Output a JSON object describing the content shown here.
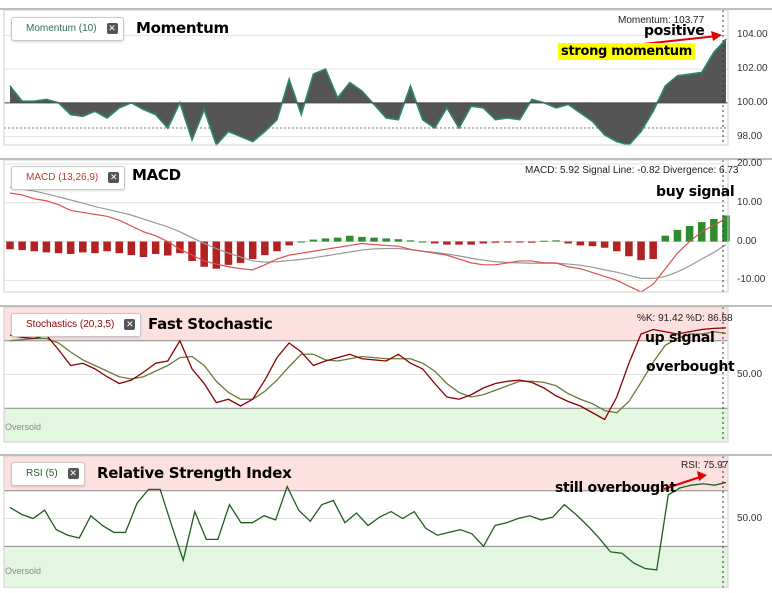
{
  "chart_data": [
    {
      "type": "area",
      "panel": "momentum",
      "indicator_label": "Momentum (10)",
      "title": "Momentum",
      "readout": "Momentum: 103.77",
      "annotations": [
        "positive",
        "strong momentum"
      ],
      "ylim": [
        97.5,
        105.5
      ],
      "yticks": [
        98,
        100,
        102,
        104
      ],
      "ytick_labels": [
        "98.00",
        "100.00",
        "102.00",
        "104.00"
      ],
      "baseline": 100,
      "values": [
        101.0,
        100.1,
        100.1,
        100.2,
        100.0,
        99.3,
        99.2,
        99.5,
        99.1,
        99.7,
        100.0,
        99.6,
        99.3,
        98.5,
        100.0,
        97.8,
        99.6,
        97.5,
        98.3,
        98.0,
        97.7,
        98.3,
        99.0,
        101.4,
        99.3,
        101.7,
        102.0,
        100.3,
        101.2,
        100.7,
        99.9,
        99.1,
        99.0,
        101.0,
        99.0,
        98.5,
        99.7,
        98.5,
        99.8,
        99.7,
        99.0,
        99.1,
        99.0,
        100.2,
        100.0,
        99.7,
        99.9,
        99.4,
        98.9,
        98.1,
        97.7,
        97.5,
        98.3,
        99.5,
        101.0,
        101.6,
        101.7,
        101.8,
        103.0,
        103.77
      ],
      "colors": {
        "area": "#555555",
        "line": "#2b8a6e"
      }
    },
    {
      "type": "bar",
      "panel": "macd",
      "indicator_label": "MACD (13,26,9)",
      "title": "MACD",
      "readout": "MACD: 5.92  Signal Line: -0.82  Divergence: 6.73",
      "annotations": [
        "buy signal"
      ],
      "ylim": [
        -13,
        21
      ],
      "yticks": [
        -10,
        0,
        10,
        20
      ],
      "ytick_labels": [
        "-10.00",
        "0.00",
        "10.00",
        "20.00"
      ],
      "series": [
        {
          "name": "Divergence",
          "values": [
            -2.0,
            -2.2,
            -2.5,
            -2.8,
            -3.0,
            -3.2,
            -2.8,
            -3.0,
            -2.5,
            -3.0,
            -3.5,
            -4.0,
            -3.2,
            -3.6,
            -3.0,
            -5.0,
            -6.5,
            -7.0,
            -6.0,
            -5.5,
            -4.5,
            -3.5,
            -2.5,
            -1.0,
            0.0,
            0.5,
            0.8,
            1.0,
            1.5,
            1.2,
            1.0,
            0.8,
            0.6,
            0.3,
            0.0,
            -0.5,
            -0.8,
            -0.8,
            -0.8,
            -0.5,
            -0.3,
            -0.2,
            -0.2,
            -0.3,
            0.2,
            0.3,
            -0.5,
            -1.0,
            -1.2,
            -1.6,
            -2.5,
            -3.8,
            -4.8,
            -4.5,
            1.5,
            3.0,
            4.0,
            5.0,
            5.8,
            6.73
          ]
        },
        {
          "name": "MACD",
          "values": [
            12.5,
            12.0,
            11.0,
            10.5,
            9.5,
            8.0,
            7.5,
            7.0,
            6.5,
            5.5,
            4.0,
            2.5,
            1.5,
            0.0,
            -2.0,
            -3.5,
            -5.0,
            -5.8,
            -6.5,
            -7.0,
            -7.3,
            -6.0,
            -4.5,
            -3.5,
            -3.0,
            -2.5,
            -2.0,
            -1.5,
            -1.0,
            -0.5,
            -0.8,
            -1.0,
            -1.2,
            -2.0,
            -2.5,
            -3.0,
            -3.5,
            -4.5,
            -5.5,
            -6.0,
            -6.0,
            -5.5,
            -5.0,
            -5.0,
            -5.5,
            -5.5,
            -6.5,
            -7.0,
            -8.0,
            -9.0,
            -10.0,
            -11.5,
            -13.0,
            -11.0,
            -7.0,
            -3.0,
            0.0,
            2.5,
            4.2,
            5.92
          ]
        },
        {
          "name": "Signal Line",
          "values": [
            14.0,
            13.5,
            13.0,
            12.3,
            11.5,
            10.7,
            9.9,
            9.0,
            8.3,
            7.6,
            6.8,
            5.8,
            4.8,
            3.8,
            2.5,
            1.0,
            -0.5,
            -1.8,
            -3.0,
            -4.0,
            -5.0,
            -5.3,
            -5.2,
            -4.9,
            -4.6,
            -4.2,
            -3.7,
            -3.2,
            -2.7,
            -2.2,
            -1.9,
            -1.8,
            -1.8,
            -2.1,
            -2.5,
            -2.8,
            -3.2,
            -3.7,
            -4.3,
            -4.8,
            -5.2,
            -5.4,
            -5.5,
            -5.6,
            -5.6,
            -5.6,
            -5.8,
            -6.1,
            -6.6,
            -7.3,
            -7.9,
            -8.7,
            -9.5,
            -9.5,
            -9.0,
            -7.8,
            -6.3,
            -4.5,
            -2.8,
            -0.82
          ]
        }
      ],
      "colors": {
        "positive": "#2e8b2e",
        "negative": "#b22222",
        "macd": "#d9534f",
        "signal": "#999999"
      }
    },
    {
      "type": "line",
      "panel": "stochastics",
      "indicator_label": "Stochastics (20,3,5)",
      "title": "Fast Stochastic",
      "readout": "%K: 91.42  %D: 86.58",
      "annotations": [
        "up signal",
        "overbought"
      ],
      "zone_label": "Oversold",
      "ylim": [
        -10,
        110
      ],
      "yticks": [
        50
      ],
      "ytick_labels": [
        "50.00"
      ],
      "zones": {
        "overbought": 80,
        "oversold": 20
      },
      "series": [
        {
          "name": "%K",
          "values": [
            85,
            83,
            82,
            85,
            72,
            58,
            60,
            55,
            48,
            42,
            45,
            52,
            60,
            62,
            80,
            55,
            42,
            25,
            28,
            22,
            28,
            45,
            65,
            78,
            70,
            58,
            62,
            65,
            68,
            64,
            63,
            62,
            68,
            60,
            55,
            42,
            30,
            28,
            32,
            38,
            42,
            44,
            45,
            43,
            38,
            31,
            26,
            22,
            16,
            10,
            30,
            60,
            86,
            90,
            88,
            86,
            88,
            90,
            91,
            91.42
          ]
        },
        {
          "name": "%D",
          "values": [
            80,
            81,
            82,
            82,
            78,
            70,
            63,
            58,
            53,
            48,
            46,
            48,
            53,
            58,
            65,
            66,
            58,
            44,
            34,
            28,
            28,
            35,
            45,
            57,
            68,
            68,
            63,
            62,
            64,
            66,
            65,
            64,
            64,
            64,
            60,
            53,
            42,
            34,
            30,
            32,
            36,
            40,
            44,
            44,
            43,
            40,
            33,
            28,
            24,
            18,
            16,
            26,
            43,
            61,
            76,
            82,
            86,
            86,
            88,
            86.58
          ]
        }
      ],
      "colors": {
        "k": "#8b0000",
        "d": "#6b7a3a"
      }
    },
    {
      "type": "line",
      "panel": "rsi",
      "indicator_label": "RSI (5)",
      "title": "Relative Strength Index",
      "readout": "RSI: 75.97",
      "annotations": [
        "still overbought"
      ],
      "zone_label": "Oversold",
      "ylim": [
        0,
        95
      ],
      "yticks": [
        50
      ],
      "ytick_labels": [
        "50.00"
      ],
      "zones": {
        "overbought": 70,
        "oversold": 30
      },
      "series": [
        {
          "name": "RSI",
          "values": [
            58,
            53,
            50,
            56,
            42,
            38,
            36,
            52,
            45,
            40,
            40,
            61,
            71,
            71,
            45,
            20,
            55,
            35,
            35,
            60,
            47,
            47,
            52,
            49,
            73,
            56,
            48,
            60,
            63,
            47,
            54,
            45,
            51,
            55,
            50,
            55,
            43,
            38,
            40,
            42,
            39,
            30,
            45,
            47,
            50,
            52,
            49,
            51,
            60,
            53,
            45,
            36,
            26,
            25,
            18,
            14,
            13,
            67,
            72,
            74,
            75,
            74,
            75.97
          ]
        }
      ],
      "colors": {
        "line": "#1f5e1f"
      }
    }
  ]
}
